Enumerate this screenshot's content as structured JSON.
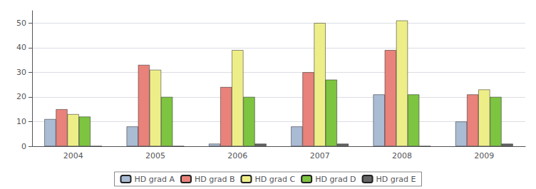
{
  "chart_data": {
    "type": "bar",
    "categories": [
      "2004",
      "2005",
      "2006",
      "2007",
      "2008",
      "2009"
    ],
    "series": [
      {
        "name": "HD grad A",
        "color": "#aabbd4",
        "values": [
          11,
          8,
          1,
          8,
          21,
          10
        ]
      },
      {
        "name": "HD grad B",
        "color": "#e8827a",
        "values": [
          15,
          33,
          24,
          30,
          39,
          21
        ]
      },
      {
        "name": "HD grad C",
        "color": "#eeee88",
        "values": [
          13,
          31,
          39,
          50,
          51,
          23
        ]
      },
      {
        "name": "HD grad D",
        "color": "#7dc440",
        "values": [
          12,
          20,
          20,
          27,
          21,
          20
        ]
      },
      {
        "name": "HD grad E",
        "color": "#646464",
        "values": [
          0,
          0,
          1,
          1,
          0,
          1
        ]
      }
    ],
    "ylim": [
      0,
      55
    ],
    "yticks": [
      0,
      10,
      20,
      30,
      40,
      50
    ],
    "grid": true,
    "legend": "bottom"
  }
}
